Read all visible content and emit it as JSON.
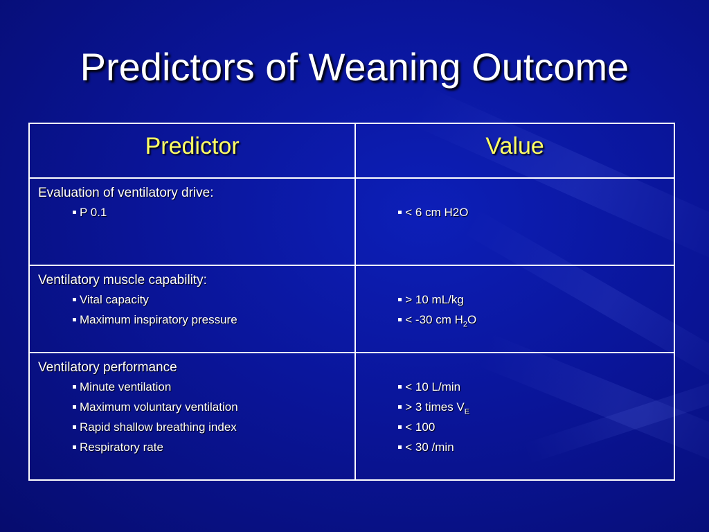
{
  "slide": {
    "title": "Predictors of Weaning Outcome",
    "table": {
      "headers": [
        "Predictor",
        "Value"
      ],
      "groups": [
        {
          "label": "Evaluation of ventilatory drive:",
          "items": [
            {
              "predictor": "P 0.1",
              "value": "< 6 cm H2O"
            }
          ]
        },
        {
          "label": "Ventilatory muscle capability:",
          "items": [
            {
              "predictor": "Vital capacity",
              "value": "> 10 mL/kg"
            },
            {
              "predictor": "Maximum inspiratory pressure",
              "value_prefix": "< -30 cm H",
              "value_sub": "2",
              "value_suffix": "O"
            }
          ]
        },
        {
          "label": "Ventilatory performance",
          "items": [
            {
              "predictor": "Minute ventilation",
              "value": "< 10 L/min"
            },
            {
              "predictor": "Maximum voluntary ventilation",
              "value_prefix": "> 3 times V",
              "value_sub": "E"
            },
            {
              "predictor": "Rapid shallow breathing index",
              "value": "< 100"
            },
            {
              "predictor": "Respiratory rate",
              "value": "< 30 /min"
            }
          ]
        }
      ]
    },
    "colors": {
      "background": "#0a1599",
      "header_text": "#ffff66",
      "text": "#ffffff",
      "border": "#ffffff"
    }
  }
}
